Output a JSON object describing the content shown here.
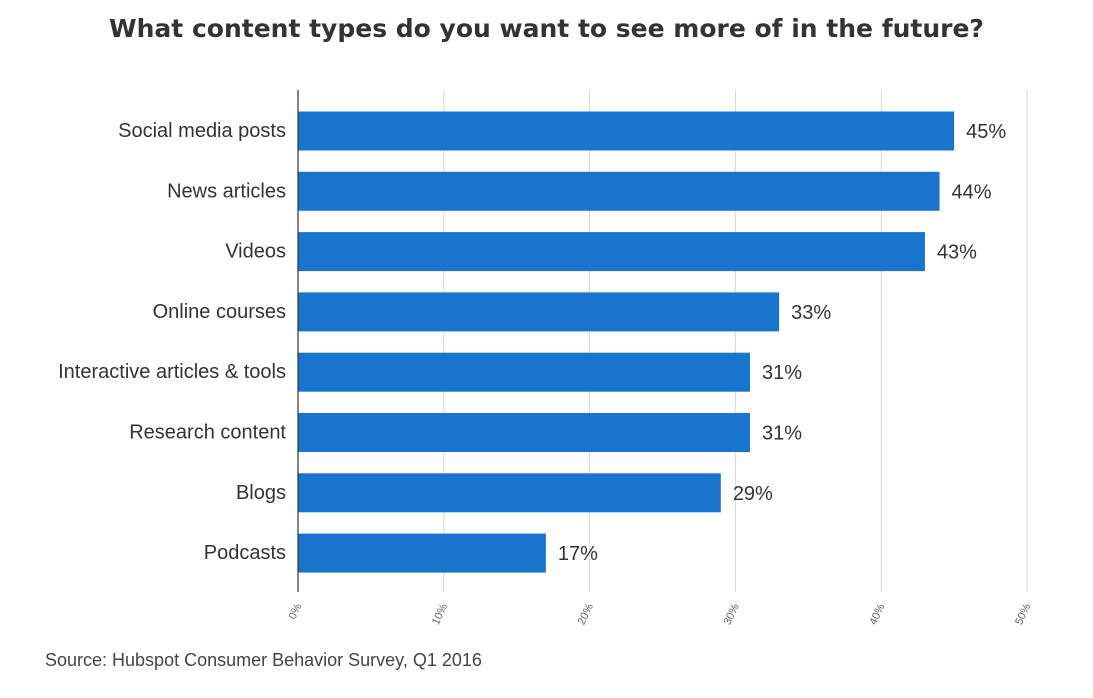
{
  "chart_data": {
    "type": "bar",
    "orientation": "horizontal",
    "title": "What content types do you want to see more of in the future?",
    "source": "Source: Hubspot Consumer Behavior Survey, Q1 2016",
    "categories": [
      "Social media posts",
      "News articles",
      "Videos",
      "Online courses",
      "Interactive articles & tools",
      "Research content",
      "Blogs",
      "Podcasts"
    ],
    "values": [
      45,
      44,
      43,
      33,
      31,
      31,
      29,
      17
    ],
    "data_labels": [
      "45%",
      "44%",
      "43%",
      "33%",
      "31%",
      "31%",
      "29%",
      "17%"
    ],
    "x_ticks": [
      0,
      10,
      20,
      30,
      40,
      50
    ],
    "x_tick_labels": [
      "0%",
      "10%",
      "20%",
      "30%",
      "40%",
      "50%"
    ],
    "xlim": [
      0,
      50
    ],
    "grid": "vertical",
    "legend": "none",
    "bar_color": "#1874CD",
    "grid_color": "#d9d9d9",
    "axis_color": "#333333"
  }
}
